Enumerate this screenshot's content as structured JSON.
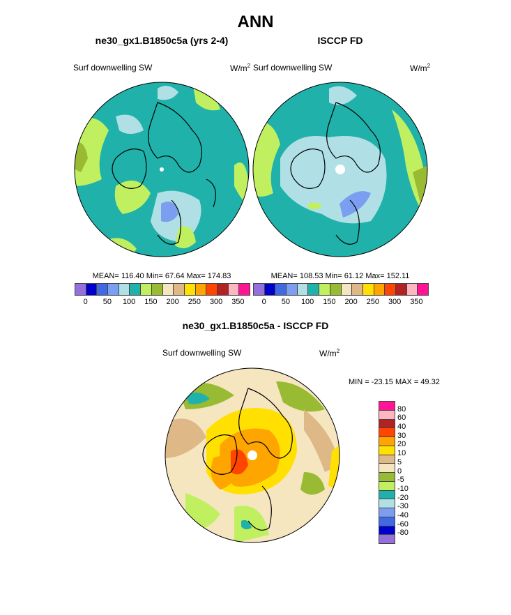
{
  "title": "ANN",
  "panels": [
    {
      "subtitle": "ne30_gx1.B1850c5a (yrs 2-4)",
      "variable": "Surf downwelling SW",
      "units": "W/m",
      "units_sup": "2",
      "stats": "MEAN= 116.40  Min=  67.64  Max= 174.83"
    },
    {
      "subtitle": "ISCCP FD",
      "variable": "Surf downwelling SW",
      "units": "W/m",
      "units_sup": "2",
      "stats": "MEAN= 108.53  Min=  61.12  Max= 152.11"
    }
  ],
  "diff": {
    "subtitle": "ne30_gx1.B1850c5a - ISCCP FD",
    "variable": "Surf downwelling SW",
    "units": "W/m",
    "units_sup": "2",
    "stats": "MIN = -23.15 MAX =  49.32"
  },
  "colorbar_main": {
    "colors": [
      "#9370db",
      "#0000cd",
      "#4169e1",
      "#7b9ef0",
      "#b0e0e6",
      "#20b2aa",
      "#c0f060",
      "#99bb33",
      "#f5e6c0",
      "#deb887",
      "#ffe000",
      "#ffa500",
      "#ff4500",
      "#b22222",
      "#ffb6c1",
      "#ff1493"
    ],
    "labels": [
      "0",
      "50",
      "100",
      "150",
      "200",
      "250",
      "300",
      "350"
    ]
  },
  "colorbar_diff": {
    "colors": [
      "#ff1493",
      "#ffb6c1",
      "#b22222",
      "#ff4500",
      "#ffa500",
      "#ffe000",
      "#deb887",
      "#f5e6c0",
      "#99bb33",
      "#c0f060",
      "#20b2aa",
      "#b0e0e6",
      "#7b9ef0",
      "#4169e1",
      "#0000cd",
      "#9370db"
    ],
    "labels": [
      "80",
      "60",
      "40",
      "30",
      "20",
      "10",
      "5",
      "0",
      "-5",
      "-10",
      "-20",
      "-30",
      "-40",
      "-60",
      "-80"
    ]
  }
}
